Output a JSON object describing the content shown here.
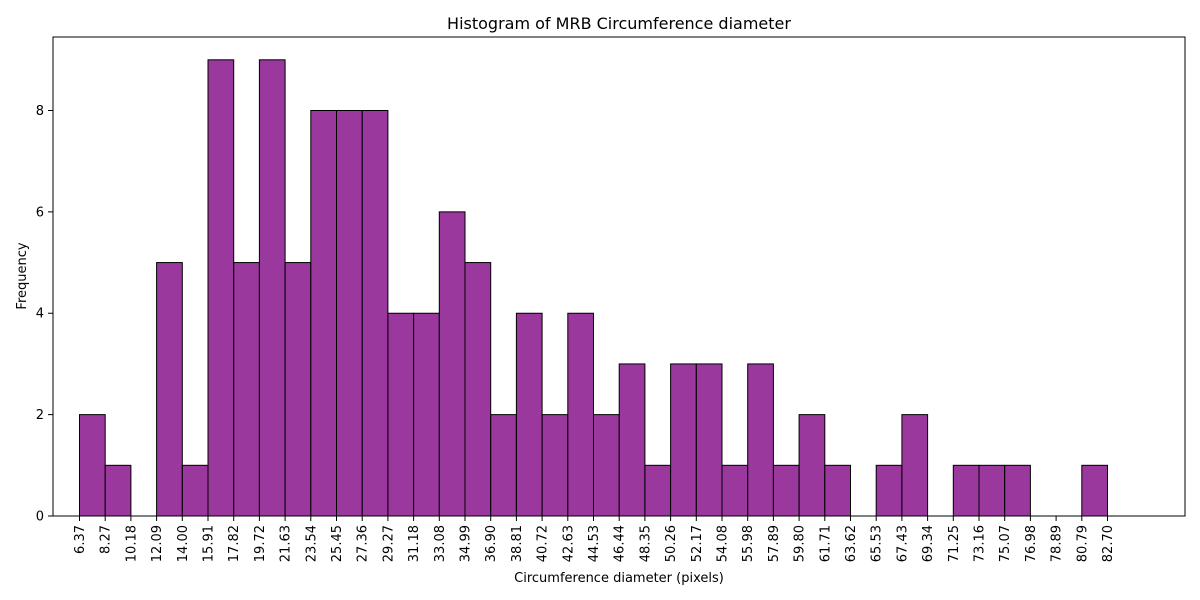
{
  "chart_data": {
    "type": "bar",
    "title": "Histogram of MRB Circumference diameter",
    "xlabel": "Circumference diameter (pixels)",
    "ylabel": "Frequency",
    "bin_edges": [
      "6.37",
      "8.27",
      "10.18",
      "12.09",
      "14.00",
      "15.91",
      "17.82",
      "19.72",
      "21.63",
      "23.54",
      "25.45",
      "27.36",
      "29.27",
      "31.18",
      "33.08",
      "34.99",
      "36.90",
      "38.81",
      "40.72",
      "42.63",
      "44.53",
      "46.44",
      "48.35",
      "50.26",
      "52.17",
      "54.08",
      "55.98",
      "57.89",
      "59.80",
      "61.71",
      "63.62",
      "65.53",
      "67.43",
      "69.34",
      "71.25",
      "73.16",
      "75.07",
      "76.98",
      "78.89",
      "80.79",
      "82.70"
    ],
    "values": [
      2,
      1,
      0,
      5,
      1,
      9,
      5,
      9,
      5,
      8,
      8,
      8,
      4,
      4,
      6,
      5,
      2,
      4,
      2,
      4,
      2,
      3,
      1,
      3,
      3,
      1,
      3,
      1,
      2,
      1,
      0,
      1,
      2,
      0,
      1,
      1,
      1,
      0,
      0,
      1
    ],
    "yticks": [
      0,
      2,
      4,
      6,
      8
    ],
    "ylim": [
      0,
      9.45
    ],
    "bar_color": "#8B1A8F",
    "edge_color": "#000000",
    "grid": false,
    "legend": false
  }
}
